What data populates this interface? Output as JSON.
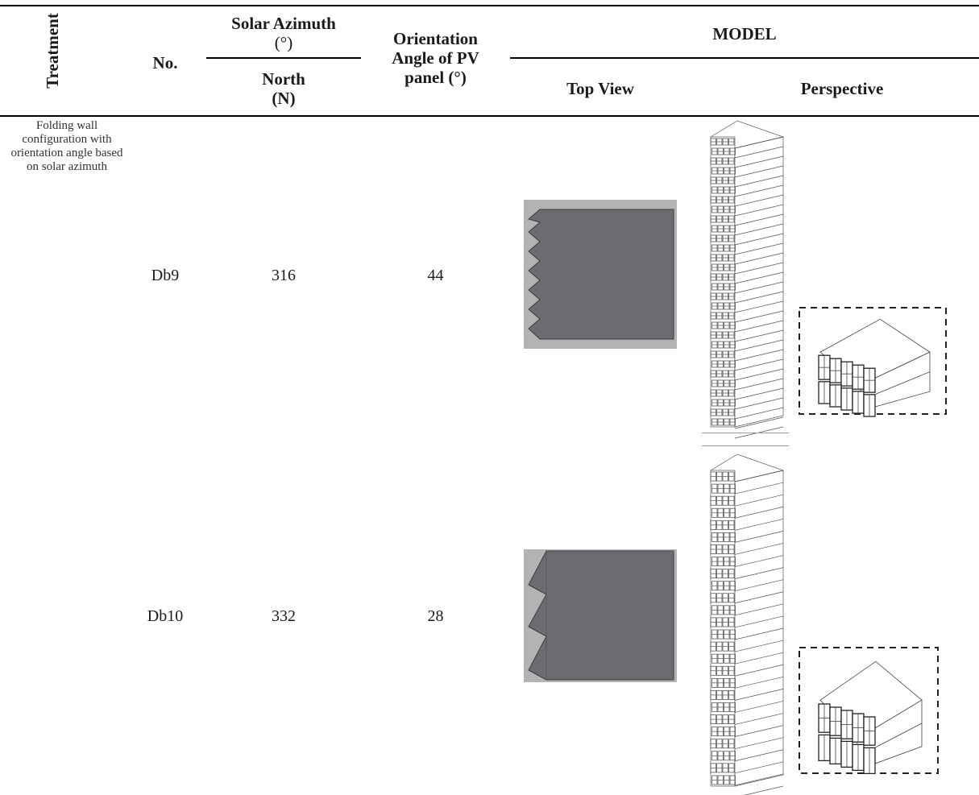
{
  "header": {
    "treatment": "Treatment",
    "no": "No.",
    "solar_azimuth": "Solar Azimuth",
    "solar_azimuth_unit": "(°)",
    "north": "North",
    "north_abbr": "(N)",
    "orientation_line1": "Orientation",
    "orientation_line2": "Angle of PV",
    "orientation_line3": "panel (°)",
    "model": "MODEL",
    "top_view": "Top View",
    "perspective": "Perspective"
  },
  "treatment_note": "Folding wall configuration with orientation angle based on solar azimuth",
  "rows": [
    {
      "no": "Db9",
      "azimuth": "316",
      "orientation": "44",
      "folds": 5
    },
    {
      "no": "Db10",
      "azimuth": "332",
      "orientation": "28",
      "folds": 3
    }
  ]
}
